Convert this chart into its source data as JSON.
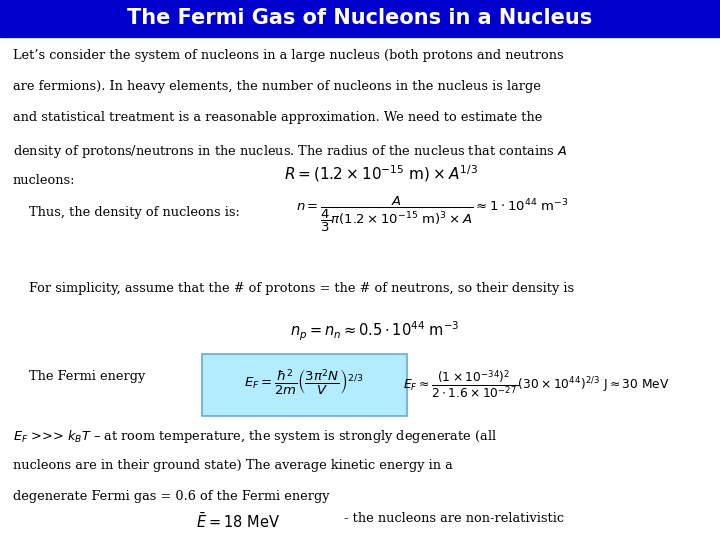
{
  "title": "The Fermi Gas of Nucleons in a Nucleus",
  "title_bg": "#0000cc",
  "title_color": "#ffffff",
  "bg_color": "#ffffff",
  "text_color": "#000000",
  "highlight_color": "#b3ecff",
  "para1": "Let’s consider the system of nucleons in a large nucleus (both protons and neutrons are fermions). In heavy elements, the number of nucleons in the nucleus is large and statistical treatment is a reasonable approximation. We need to estimate the density of protons/neutrons in the nucleus. The radius of the nucleus that contains $A$ nucleons:",
  "eq1": "$R = \\left(1.2 \\times 10^{-15}\\ \\mathrm{m}\\right) \\times A^{1/3}$",
  "para2": "Thus, the density of nucleons is:",
  "eq2": "$n = \\dfrac{A}{\\dfrac{4}{3}\\pi\\left(1.2\\times10^{-15}\\ \\mathrm{m}\\right)^3 \\times A} \\approx 1\\cdot10^{44}\\ \\mathrm{m}^{-3}$",
  "para3": "For simplicity, assume that the # of protons = the # of neutrons, so their density is",
  "eq3": "$n_p = n_n \\approx 0.5\\cdot10^{44}\\ \\mathrm{m}^{-3}$",
  "fermi_label": "The Fermi energy",
  "eq4_box": "$E_F = \\dfrac{\\hbar^2}{2m}\\left(\\dfrac{3\\pi^2 N}{V}\\right)^{2/3}$",
  "eq4_approx": "$E_F \\approx \\dfrac{\\left(1\\times10^{-34}\\right)^2}{2\\cdot1.6\\times10^{-27}}\\left(30\\times10^{44}\\right)^{2/3}\\ \\mathrm{J} \\approx 30\\ \\mathrm{MeV}$",
  "para4": "$E_F$ >>> $k_BT$ – at room temperature, the system is strongly degenerate (all nucleons are in their ground state) The average kinetic energy in a degenerate Fermi gas = 0.6 of the Fermi energy",
  "eq5": "$\\bar{E} = 18\\ \\mathrm{MeV}$",
  "note": "- the nucleons are non-relativistic"
}
